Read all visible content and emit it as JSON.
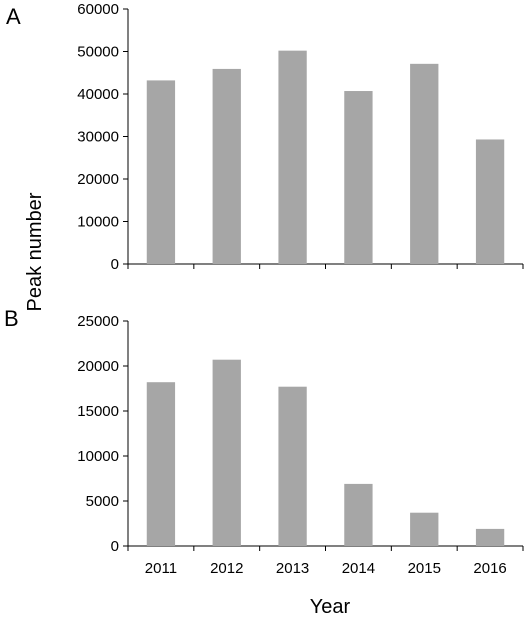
{
  "chart_data": [
    {
      "type": "bar",
      "panel": "A",
      "categories": [
        "2011",
        "2012",
        "2013",
        "2014",
        "2015",
        "2016"
      ],
      "values": [
        43200,
        45900,
        50200,
        40700,
        47100,
        29300
      ],
      "ylim": [
        0,
        60000
      ],
      "yticks": [
        "0",
        "10000",
        "20000",
        "30000",
        "40000",
        "50000",
        "60000"
      ],
      "xlabel": "",
      "ylabel": "",
      "show_xtick_labels": false,
      "grid": false,
      "bar_color": "#a6a6a6"
    },
    {
      "type": "bar",
      "panel": "B",
      "categories": [
        "2011",
        "2012",
        "2013",
        "2014",
        "2015",
        "2016"
      ],
      "values": [
        18200,
        20700,
        17700,
        6900,
        3700,
        1900
      ],
      "ylim": [
        0,
        25000
      ],
      "yticks": [
        "0",
        "5000",
        "10000",
        "15000",
        "20000",
        "25000"
      ],
      "xlabel": "Year",
      "ylabel": "",
      "show_xtick_labels": true,
      "grid": false,
      "bar_color": "#a6a6a6"
    }
  ],
  "shared_ylabel": "Peak number",
  "colors": {
    "bars": "#a6a6a6",
    "axis": "#000000"
  }
}
